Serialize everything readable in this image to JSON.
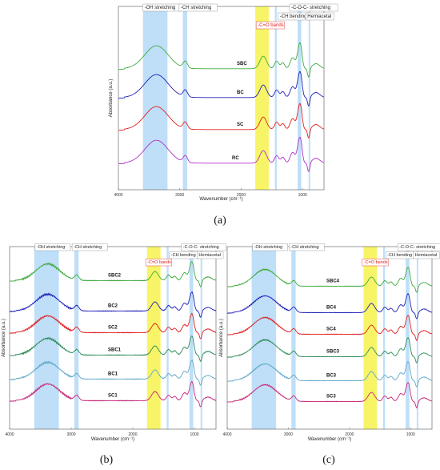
{
  "figure": {
    "panels": [
      {
        "caption": "(a)",
        "chart_data": {
          "type": "line",
          "xlabel": "Wavenumber (cm⁻¹)",
          "ylabel": "Absorbance (a.u.)",
          "xlim": [
            4000,
            650
          ],
          "x_ticks": [
            "4000",
            "3000",
            "2000",
            "1000"
          ],
          "x_tick_values": [
            4000,
            3000,
            2000,
            1000
          ],
          "x_reversed": true,
          "grid": false,
          "bands": [
            {
              "label": "-OH stretching",
              "from": 3600,
              "to": 3200,
              "color": "#aad4f5",
              "label_color": "#222222"
            },
            {
              "label": "-CH stretching",
              "from": 2950,
              "to": 2880,
              "color": "#aad4f5",
              "label_color": "#222222"
            },
            {
              "label": "-C=O bands",
              "from": 1770,
              "to": 1550,
              "color": "#f6f34c",
              "label_color": "#e0201c"
            },
            {
              "label": "-C-O-C- stretching",
              "from": 1080,
              "to": 1020,
              "color": "#aad4f5",
              "label_color": "#222222"
            },
            {
              "label": "-CH bending",
              "from": 1450,
              "to": 1420,
              "color": "#aad4f5",
              "label_color": "#222222"
            },
            {
              "label": "Hemiacetal",
              "from": 900,
              "to": 880,
              "color": "#aad4f5",
              "label_color": "#222222"
            }
          ],
          "series": [
            {
              "name": "SBC",
              "color": "#3faa3f"
            },
            {
              "name": "BC",
              "color": "#1f1fb8"
            },
            {
              "name": "SC",
              "color": "#e02020"
            },
            {
              "name": "RC",
              "color": "#b030c8"
            }
          ]
        }
      },
      {
        "caption": "(b)",
        "chart_data": {
          "type": "line",
          "xlabel": "Wavenumber (cm⁻¹)",
          "ylabel": "Absorbance (a.u.)",
          "xlim": [
            4000,
            650
          ],
          "x_ticks": [
            "4000",
            "3000",
            "2000",
            "1000"
          ],
          "x_tick_values": [
            4000,
            3000,
            2000,
            1000
          ],
          "x_reversed": true,
          "grid": false,
          "bands": [
            {
              "label": "-OH stretching",
              "from": 3600,
              "to": 3200,
              "color": "#aad4f5",
              "label_color": "#222222"
            },
            {
              "label": "-CH stretching",
              "from": 2950,
              "to": 2880,
              "color": "#aad4f5",
              "label_color": "#222222"
            },
            {
              "label": "-C=O bands",
              "from": 1770,
              "to": 1550,
              "color": "#f6f34c",
              "label_color": "#e0201c"
            },
            {
              "label": "-C-O-C- stretching",
              "from": 1080,
              "to": 1020,
              "color": "#aad4f5",
              "label_color": "#222222"
            },
            {
              "label": "-CH bending",
              "from": 1450,
              "to": 1420,
              "color": "#aad4f5",
              "label_color": "#222222"
            },
            {
              "label": "Hemiacetal",
              "from": 900,
              "to": 880,
              "color": "#aad4f5",
              "label_color": "#222222"
            }
          ],
          "series": [
            {
              "name": "SBC2",
              "color": "#3faa3f"
            },
            {
              "name": "BC2",
              "color": "#1f1fb8"
            },
            {
              "name": "SC2",
              "color": "#e02020"
            },
            {
              "name": "SBC1",
              "color": "#2e8b57"
            },
            {
              "name": "BC1",
              "color": "#5fa8c8"
            },
            {
              "name": "SC1",
              "color": "#c8287a"
            }
          ]
        }
      },
      {
        "caption": "(c)",
        "chart_data": {
          "type": "line",
          "xlabel": "Wavenumber (cm⁻¹)",
          "ylabel": "Absorbance (a.u.)",
          "xlim": [
            4000,
            650
          ],
          "x_ticks": [
            "4000",
            "3000",
            "2000",
            "1000"
          ],
          "x_tick_values": [
            4000,
            3000,
            2000,
            1000
          ],
          "x_reversed": true,
          "grid": false,
          "bands": [
            {
              "label": "-OH stretching",
              "from": 3600,
              "to": 3200,
              "color": "#aad4f5",
              "label_color": "#222222"
            },
            {
              "label": "-CH stretching",
              "from": 2950,
              "to": 2880,
              "color": "#aad4f5",
              "label_color": "#222222"
            },
            {
              "label": "-C=O bands",
              "from": 1770,
              "to": 1550,
              "color": "#f6f34c",
              "label_color": "#e0201c"
            },
            {
              "label": "-C-O-C- stretching",
              "from": 1080,
              "to": 1020,
              "color": "#aad4f5",
              "label_color": "#222222"
            },
            {
              "label": "-CH bending",
              "from": 1450,
              "to": 1420,
              "color": "#aad4f5",
              "label_color": "#222222"
            },
            {
              "label": "Hemiacetal",
              "from": 900,
              "to": 880,
              "color": "#aad4f5",
              "label_color": "#222222"
            }
          ],
          "series": [
            {
              "name": "SBC4",
              "color": "#3faa3f"
            },
            {
              "name": "BC4",
              "color": "#1f1fb8"
            },
            {
              "name": "SC4",
              "color": "#e02020"
            },
            {
              "name": "SBC3",
              "color": "#2e8b57"
            },
            {
              "name": "BC3",
              "color": "#5fa8c8"
            },
            {
              "name": "SC3",
              "color": "#c8287a"
            }
          ]
        }
      }
    ]
  }
}
